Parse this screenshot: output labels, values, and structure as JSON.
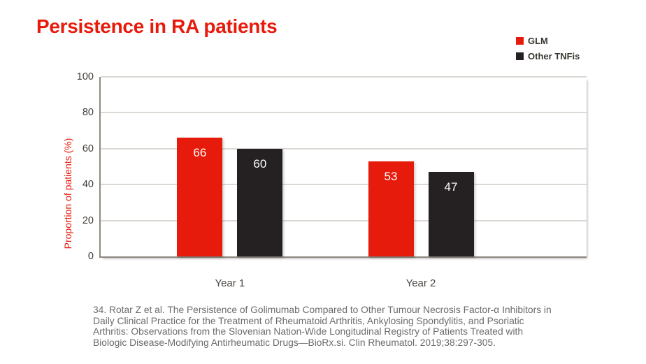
{
  "title": "Persistence in RA patients",
  "chart_data": {
    "type": "bar",
    "title": "Persistence in RA patients",
    "categories": [
      "Year 1",
      "Year 2"
    ],
    "series": [
      {
        "name": "GLM",
        "color": "#e71b0c",
        "values": [
          66,
          53
        ]
      },
      {
        "name": "Other TNFis",
        "color": "#252122",
        "values": [
          60,
          47
        ]
      }
    ],
    "xlabel": "",
    "ylabel": "Proportion of patients (%)",
    "ylim": [
      0,
      100
    ],
    "yticks": [
      0,
      20,
      40,
      60,
      80,
      100
    ],
    "grid": true,
    "legend_position": "top-right",
    "value_labels": "inside-top"
  },
  "footer": {
    "lines": [
      "34. Rotar Z et al. The Persistence of Golimumab Compared to Other Tumour Necrosis Factor-α Inhibitors in",
      "Daily Clinical Practice for the Treatment of Rheumatoid Arthritis, Ankylosing Spondylitis, and Psoriatic",
      "Arthritis: Observations from the Slovenian Nation-Wide Longitudinal Registry of Patients Treated with",
      "Biologic Disease-Modifying Antirheumatic Drugs—BioRx.si. Clin Rheumatol. 2019;38:297-305."
    ]
  },
  "colors": {
    "accent_red": "#e71b0c",
    "bar_dark": "#252122",
    "gridline": "#dcd9d5",
    "axis": "#8e8880",
    "tick_text": "#403c38",
    "footer_text": "#6b6b6b"
  }
}
